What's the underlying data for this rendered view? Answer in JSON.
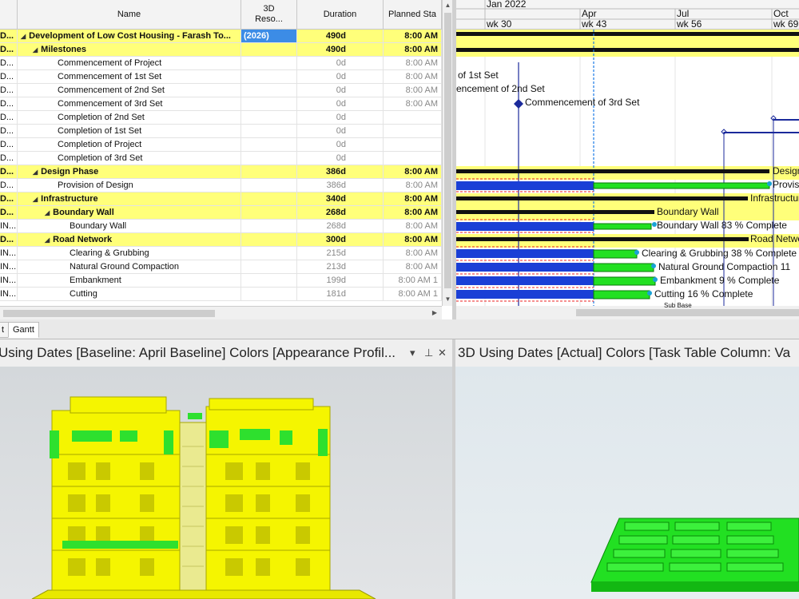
{
  "table": {
    "headers": {
      "name": "Name",
      "resource": "3D\nReso...",
      "duration": "Duration",
      "planned_start": "Planned Sta"
    },
    "rows": [
      {
        "id": "D...",
        "indent": 0,
        "expander": "◢",
        "name": "Development of Low Cost Housing - Farash To...",
        "res": "(2026)",
        "dur": "490d",
        "start": "8:00 AM",
        "type": "summary",
        "selected": true
      },
      {
        "id": "D...",
        "indent": 1,
        "expander": "◢",
        "name": "Milestones",
        "res": "",
        "dur": "490d",
        "start": "8:00 AM",
        "type": "summary"
      },
      {
        "id": "D...",
        "indent": 2,
        "name": "Commencement of Project",
        "res": "",
        "dur": "0d",
        "start": "8:00 AM",
        "type": "normal"
      },
      {
        "id": "D...",
        "indent": 2,
        "name": "Commencement of 1st Set",
        "res": "",
        "dur": "0d",
        "start": "8:00 AM",
        "type": "normal"
      },
      {
        "id": "D...",
        "indent": 2,
        "name": "Commencement of 2nd Set",
        "res": "",
        "dur": "0d",
        "start": "8:00 AM",
        "type": "normal"
      },
      {
        "id": "D...",
        "indent": 2,
        "name": "Commencement of 3rd Set",
        "res": "",
        "dur": "0d",
        "start": "8:00 AM",
        "type": "normal"
      },
      {
        "id": "D...",
        "indent": 2,
        "name": "Completion of 2nd Set",
        "res": "",
        "dur": "0d",
        "start": "",
        "type": "normal"
      },
      {
        "id": "D...",
        "indent": 2,
        "name": "Completion of 1st Set",
        "res": "",
        "dur": "0d",
        "start": "",
        "type": "normal"
      },
      {
        "id": "D...",
        "indent": 2,
        "name": "Completion of Project",
        "res": "",
        "dur": "0d",
        "start": "",
        "type": "normal"
      },
      {
        "id": "D...",
        "indent": 2,
        "name": "Completion of 3rd Set",
        "res": "",
        "dur": "0d",
        "start": "",
        "type": "normal"
      },
      {
        "id": "D...",
        "indent": 1,
        "expander": "◢",
        "name": "Design Phase",
        "res": "",
        "dur": "386d",
        "start": "8:00 AM",
        "type": "summary"
      },
      {
        "id": "D...",
        "indent": 2,
        "name": "Provision of Design",
        "res": "",
        "dur": "386d",
        "start": "8:00 AM",
        "type": "normal"
      },
      {
        "id": "D...",
        "indent": 1,
        "expander": "◢",
        "name": "Infrastructure",
        "res": "",
        "dur": "340d",
        "start": "8:00 AM",
        "type": "summary"
      },
      {
        "id": "D...",
        "indent": 2,
        "expander": "◢",
        "name": "Boundary Wall",
        "res": "",
        "dur": "268d",
        "start": "8:00 AM",
        "type": "summary"
      },
      {
        "id": "IN...",
        "indent": 3,
        "name": "Boundary Wall",
        "res": "",
        "dur": "268d",
        "start": "8:00 AM",
        "type": "normal"
      },
      {
        "id": "D...",
        "indent": 2,
        "expander": "◢",
        "name": "Road Network",
        "res": "",
        "dur": "300d",
        "start": "8:00 AM",
        "type": "summary"
      },
      {
        "id": "IN...",
        "indent": 3,
        "name": "Clearing & Grubbing",
        "res": "",
        "dur": "215d",
        "start": "8:00 AM",
        "type": "normal"
      },
      {
        "id": "IN...",
        "indent": 3,
        "name": "Natural Ground Compaction",
        "res": "",
        "dur": "213d",
        "start": "8:00 AM",
        "type": "normal"
      },
      {
        "id": "IN...",
        "indent": 3,
        "name": "Embankment",
        "res": "",
        "dur": "199d",
        "start": "8:00 AM 1",
        "type": "normal"
      },
      {
        "id": "IN...",
        "indent": 3,
        "name": "Cutting",
        "res": "",
        "dur": "181d",
        "start": "8:00 AM 1",
        "type": "normal"
      }
    ]
  },
  "gantt": {
    "top_header": "Jan 2022",
    "months": [
      "Apr",
      "Jul",
      "Oct"
    ],
    "weeks": [
      "wk 30",
      "wk 43",
      "wk 56",
      "wk 69"
    ],
    "labels": {
      "m1": "of 1st Set",
      "m2": "encement of 2nd Set",
      "m3": "Commencement of 3rd Set",
      "design": "Design",
      "provision": "Provis",
      "infra": "Infrastructure",
      "bw_sum": "Boundary Wall",
      "bw_task": "Boundary Wall  83 % Complete",
      "road": "Road Network",
      "clearing": "Clearing & Grubbing   38 % Complete",
      "ngc": "Natural Ground Compaction   11",
      "emb": "Embankment   9 % Complete",
      "cut": "Cutting   16 % Complete",
      "sub": "Sub Base"
    },
    "progress": {
      "boundary_wall": 0.83,
      "clearing": 0.38,
      "ngc": 0.11,
      "embankment": 0.09,
      "cutting": 0.16
    }
  },
  "tabs": [
    "t",
    "Gantt"
  ],
  "panes": {
    "left_title": "Using Dates [Baseline: April Baseline] Colors [Appearance Profil...",
    "right_title": "3D Using Dates [Actual] Colors [Task Table Column: Va",
    "pin": "⊥",
    "dropdown": "▾",
    "close": "✕"
  },
  "colors": {
    "summary_row": "#ffff7a",
    "bar_blue": "#1a3fd6",
    "bar_green": "#22e022",
    "building_yellow": "#f5f500",
    "selection": "#3c8ce6"
  }
}
